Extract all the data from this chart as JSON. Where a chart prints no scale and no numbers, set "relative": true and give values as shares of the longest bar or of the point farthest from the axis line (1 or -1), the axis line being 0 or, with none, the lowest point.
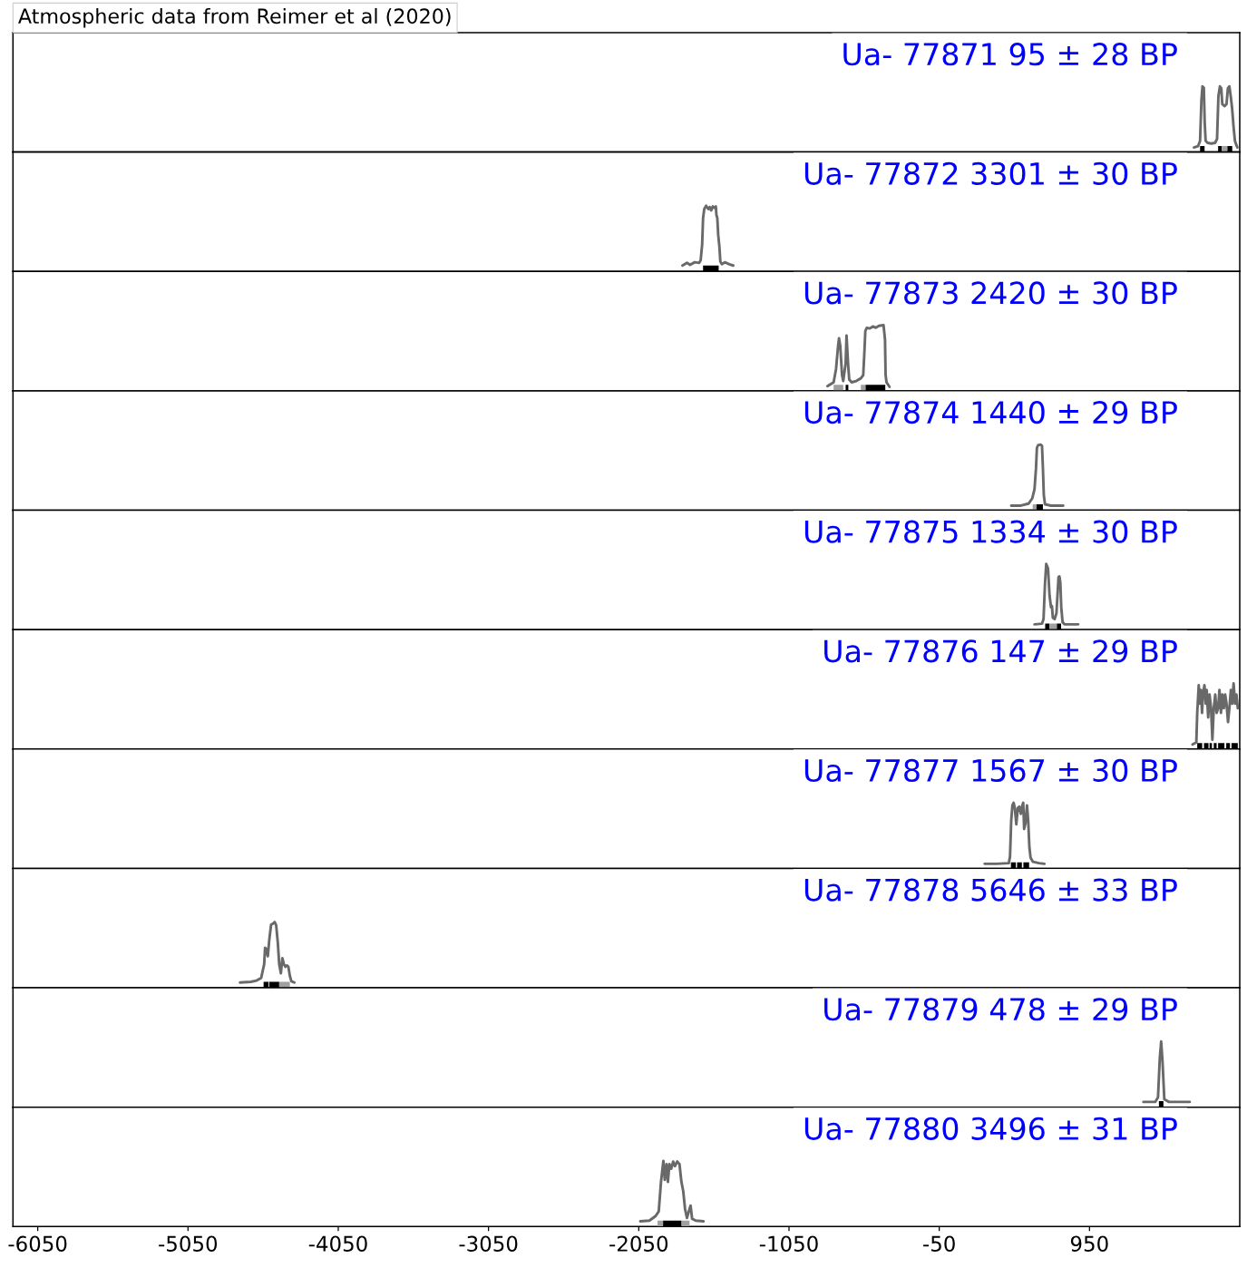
{
  "chart_data": [
    {
      "type": "line",
      "title": "Ua- 77871 95 ± 28 BP",
      "annotations": [
        "Atmospheric data from Reimer et al (2020)"
      ],
      "relative": true,
      "xlim": [
        -6215,
        1950
      ],
      "series": [
        {
          "color": "#696969",
          "x": [
            1645,
            1673,
            1686,
            1695,
            1702,
            1711,
            1717,
            1723,
            1736,
            1761,
            1786,
            1799,
            1808,
            1818,
            1827,
            1834,
            1849,
            1862,
            1871,
            1881,
            1890,
            1899,
            1909,
            1918,
            1927,
            1934
          ],
          "values": [
            0.07,
            0.09,
            0.17,
            0.79,
            1.0,
            0.98,
            0.44,
            0.17,
            0.14,
            0.13,
            0.14,
            0.2,
            0.85,
            1.0,
            0.97,
            0.73,
            0.7,
            0.73,
            0.97,
            1.0,
            0.85,
            0.67,
            0.38,
            0.17,
            0.11,
            0.07
          ]
        }
      ],
      "bands": [
        {
          "axis": "x",
          "from": 1686,
          "to": 1716,
          "color": "#000000"
        },
        {
          "axis": "x",
          "from": 1806,
          "to": 1830,
          "color": "#000000"
        },
        {
          "axis": "x",
          "from": 1830,
          "to": 1868,
          "color": "#a0a0a0"
        },
        {
          "axis": "x",
          "from": 1868,
          "to": 1900,
          "color": "#000000"
        }
      ]
    },
    {
      "type": "line",
      "title": "Ua- 77872 3301 ± 30 BP",
      "relative": true,
      "xlim": [
        -6215,
        1950
      ],
      "series": [
        {
          "color": "#696969",
          "x": [
            -1759,
            -1729,
            -1708,
            -1678,
            -1648,
            -1638,
            -1628,
            -1622,
            -1614,
            -1602,
            -1587,
            -1578,
            -1568,
            -1557,
            -1547,
            -1537,
            -1533,
            -1527,
            -1521,
            -1513,
            -1507,
            -1497,
            -1477,
            -1447,
            -1421
          ],
          "values": [
            0.09,
            0.13,
            0.1,
            0.14,
            0.13,
            0.17,
            0.41,
            0.81,
            0.95,
            1.0,
            0.95,
            0.98,
            0.93,
            0.99,
            0.97,
            0.99,
            0.86,
            0.81,
            0.55,
            0.37,
            0.15,
            0.11,
            0.14,
            0.11,
            0.09
          ]
        }
      ],
      "bands": [
        {
          "axis": "x",
          "from": -1622,
          "to": -1518,
          "color": "#000000"
        }
      ]
    },
    {
      "type": "line",
      "title": "Ua- 77873 2420 ± 30 BP",
      "relative": true,
      "xlim": [
        -6215,
        1950
      ],
      "series": [
        {
          "color": "#696969",
          "x": [
            -794,
            -753,
            -737,
            -723,
            -717,
            -709,
            -697,
            -689,
            -673,
            -667,
            -657,
            -649,
            -633,
            -602,
            -572,
            -556,
            -548,
            -542,
            -532,
            -512,
            -492,
            -472,
            -452,
            -421,
            -411,
            -407,
            -401,
            -381
          ],
          "values": [
            0.07,
            0.13,
            0.33,
            0.69,
            0.8,
            0.69,
            0.24,
            0.15,
            0.42,
            0.84,
            0.42,
            0.17,
            0.13,
            0.15,
            0.19,
            0.24,
            0.6,
            0.91,
            0.96,
            0.95,
            0.98,
            0.96,
            0.99,
            1.0,
            0.78,
            0.24,
            0.13,
            0.06
          ]
        }
      ],
      "bands": [
        {
          "axis": "x",
          "from": -753,
          "to": -689,
          "color": "#a0a0a0"
        },
        {
          "axis": "x",
          "from": -673,
          "to": -655,
          "color": "#000000"
        },
        {
          "axis": "x",
          "from": -572,
          "to": -540,
          "color": "#a0a0a0"
        },
        {
          "axis": "x",
          "from": -540,
          "to": -409,
          "color": "#000000"
        }
      ]
    },
    {
      "type": "line",
      "title": "Ua- 77874 1440 ± 29 BP",
      "relative": true,
      "xlim": [
        -6215,
        1950
      ],
      "series": [
        {
          "color": "#696969",
          "x": [
            429,
            493,
            544,
            569,
            584,
            594,
            600,
            608,
            624,
            634,
            640,
            646,
            654,
            694,
            775
          ],
          "values": [
            0.07,
            0.07,
            0.1,
            0.18,
            0.32,
            0.64,
            0.95,
            0.99,
            1.0,
            0.98,
            0.64,
            0.23,
            0.09,
            0.07,
            0.07
          ]
        }
      ],
      "bands": [
        {
          "axis": "x",
          "from": 572,
          "to": 598,
          "color": "#a0a0a0"
        },
        {
          "axis": "x",
          "from": 598,
          "to": 640,
          "color": "#000000"
        }
      ]
    },
    {
      "type": "line",
      "title": "Ua- 77875 1334 ± 30 BP",
      "relative": true,
      "xlim": [
        -6215,
        1950
      ],
      "series": [
        {
          "color": "#696969",
          "x": [
            584,
            634,
            644,
            654,
            662,
            674,
            684,
            694,
            700,
            706,
            718,
            730,
            744,
            750,
            756,
            762,
            771,
            785,
            875
          ],
          "values": [
            0.08,
            0.09,
            0.16,
            0.71,
            1.0,
            0.93,
            0.52,
            0.34,
            0.36,
            0.18,
            0.16,
            0.25,
            0.8,
            0.81,
            0.71,
            0.34,
            0.11,
            0.08,
            0.08
          ]
        }
      ],
      "bands": [
        {
          "axis": "x",
          "from": 655,
          "to": 683,
          "color": "#000000"
        },
        {
          "axis": "x",
          "from": 683,
          "to": 733,
          "color": "#a0a0a0"
        },
        {
          "axis": "x",
          "from": 733,
          "to": 761,
          "color": "#000000"
        }
      ]
    },
    {
      "type": "line",
      "title": "Ua- 77876 147 ± 29 BP",
      "relative": true,
      "xlim": [
        -6215,
        1950
      ],
      "series": [
        {
          "color": "#696969",
          "x": [
            1636,
            1661,
            1667,
            1677,
            1686,
            1692,
            1699,
            1705,
            1715,
            1724,
            1730,
            1740,
            1749,
            1759,
            1768,
            1777,
            1787,
            1796,
            1806,
            1815,
            1825,
            1834,
            1844,
            1853,
            1862,
            1872,
            1881,
            1891,
            1900,
            1909,
            1919,
            1928,
            1937
          ],
          "values": [
            0.07,
            0.1,
            0.55,
            0.97,
            0.69,
            0.9,
            0.55,
            0.83,
            0.97,
            0.69,
            0.9,
            0.48,
            0.83,
            0.62,
            0.14,
            0.62,
            0.83,
            0.55,
            0.62,
            0.9,
            0.55,
            0.83,
            0.62,
            0.83,
            0.69,
            0.41,
            0.62,
            0.9,
            0.69,
            1.0,
            0.69,
            0.83,
            0.62
          ]
        }
      ],
      "bands": [
        {
          "axis": "x",
          "from": 1667,
          "to": 1700,
          "color": "#000000"
        },
        {
          "axis": "x",
          "from": 1712,
          "to": 1742,
          "color": "#000000"
        },
        {
          "axis": "x",
          "from": 1749,
          "to": 1765,
          "color": "#000000"
        },
        {
          "axis": "x",
          "from": 1777,
          "to": 1796,
          "color": "#000000"
        },
        {
          "axis": "x",
          "from": 1806,
          "to": 1848,
          "color": "#000000"
        },
        {
          "axis": "x",
          "from": 1860,
          "to": 1885,
          "color": "#000000"
        },
        {
          "axis": "x",
          "from": 1895,
          "to": 1937,
          "color": "#000000"
        }
      ]
    },
    {
      "type": "line",
      "title": "Ua- 77877 1567 ± 30 BP",
      "relative": true,
      "xlim": [
        -6215,
        1950
      ],
      "series": [
        {
          "color": "#696969",
          "x": [
            252,
            332,
            413,
            421,
            429,
            437,
            445,
            453,
            463,
            473,
            483,
            493,
            503,
            509,
            515,
            524,
            534,
            542,
            550,
            558,
            574,
            614,
            650
          ],
          "values": [
            0.07,
            0.07,
            0.08,
            0.18,
            0.73,
            0.96,
            1.0,
            0.92,
            0.67,
            0.92,
            0.94,
            0.83,
            0.96,
            1.0,
            0.6,
            0.69,
            0.96,
            0.73,
            0.32,
            0.16,
            0.1,
            0.08,
            0.07
          ]
        }
      ],
      "bands": [
        {
          "axis": "x",
          "from": 427,
          "to": 460,
          "color": "#000000"
        },
        {
          "axis": "x",
          "from": 468,
          "to": 500,
          "color": "#000000"
        },
        {
          "axis": "x",
          "from": 510,
          "to": 548,
          "color": "#000000"
        }
      ]
    },
    {
      "type": "line",
      "title": "Ua- 77878 5646 ± 33 BP",
      "relative": true,
      "xlim": [
        -6215,
        1950
      ],
      "series": [
        {
          "color": "#696969",
          "x": [
            -4704,
            -4633,
            -4593,
            -4563,
            -4543,
            -4537,
            -4529,
            -4519,
            -4509,
            -4497,
            -4482,
            -4473,
            -4463,
            -4452,
            -4443,
            -4432,
            -4422,
            -4412,
            -4402,
            -4392,
            -4382,
            -4372,
            -4362,
            -4342
          ],
          "values": [
            0.08,
            0.09,
            0.11,
            0.15,
            0.36,
            0.61,
            0.59,
            0.48,
            0.73,
            0.96,
            0.98,
            1.0,
            0.95,
            0.68,
            0.36,
            0.22,
            0.45,
            0.36,
            0.32,
            0.34,
            0.32,
            0.18,
            0.1,
            0.08
          ]
        }
      ],
      "bands": [
        {
          "axis": "x",
          "from": -4547,
          "to": -4515,
          "color": "#000000"
        },
        {
          "axis": "x",
          "from": -4510,
          "to": -4443,
          "color": "#000000"
        },
        {
          "axis": "x",
          "from": -4443,
          "to": -4372,
          "color": "#a0a0a0"
        }
      ]
    },
    {
      "type": "line",
      "title": "Ua- 77879 478 ± 29 BP",
      "relative": true,
      "xlim": [
        -6215,
        1950
      ],
      "series": [
        {
          "color": "#696969",
          "x": [
            1309,
            1388,
            1406,
            1418,
            1427,
            1436,
            1448,
            1479,
            1617
          ],
          "values": [
            0.08,
            0.08,
            0.15,
            0.75,
            1.0,
            0.7,
            0.12,
            0.08,
            0.08
          ]
        }
      ],
      "bands": [
        {
          "axis": "x",
          "from": 1412,
          "to": 1442,
          "color": "#000000"
        }
      ]
    },
    {
      "type": "line",
      "title": "Ua- 77880 3496 ± 31 BP",
      "relative": true,
      "xlim": [
        -6215,
        1950
      ],
      "xticks": [
        -6050,
        -5050,
        -4050,
        -3050,
        -2050,
        -1050,
        -50,
        950
      ],
      "series": [
        {
          "color": "#696969",
          "x": [
            -2040,
            -1979,
            -1938,
            -1917,
            -1902,
            -1886,
            -1877,
            -1865,
            -1856,
            -1846,
            -1834,
            -1821,
            -1809,
            -1794,
            -1779,
            -1766,
            -1754,
            -1742,
            -1729,
            -1717,
            -1705,
            -1695,
            -1671,
            -1619
          ],
          "values": [
            0.08,
            0.09,
            0.16,
            0.23,
            0.68,
            1.0,
            0.71,
            0.95,
            0.68,
            0.95,
            0.88,
            0.99,
            0.92,
            0.99,
            0.95,
            0.68,
            0.54,
            0.27,
            0.13,
            0.23,
            0.32,
            0.12,
            0.09,
            0.08
          ]
        }
      ],
      "bands": [
        {
          "axis": "x",
          "from": -1925,
          "to": -1888,
          "color": "#a0a0a0"
        },
        {
          "axis": "x",
          "from": -1888,
          "to": -1765,
          "color": "#000000"
        },
        {
          "axis": "x",
          "from": -1765,
          "to": -1712,
          "color": "#a0a0a0"
        }
      ]
    }
  ]
}
